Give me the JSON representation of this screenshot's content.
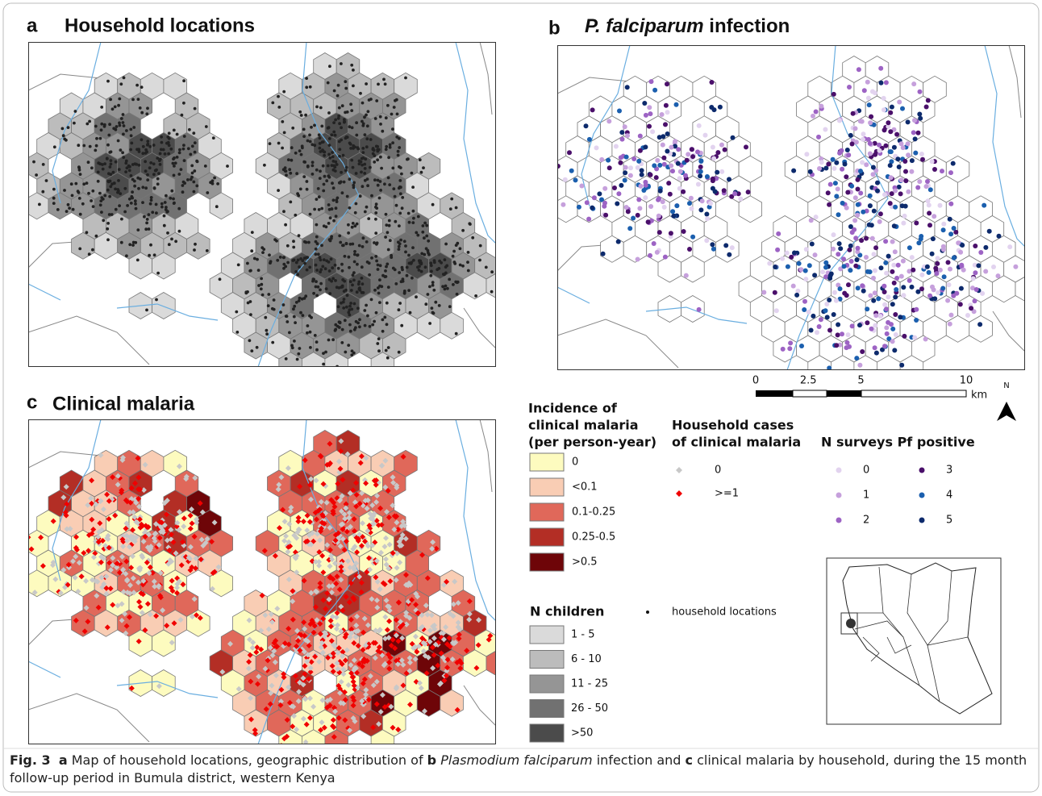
{
  "figure": {
    "panels": {
      "a": {
        "letter": "a",
        "title": "Household locations"
      },
      "b": {
        "letter": "b",
        "title_italic": "P. falciparum",
        "title": "infection"
      },
      "c": {
        "letter": "c",
        "title": "Clinical malaria"
      }
    },
    "scale_bar": {
      "ticks": [
        0,
        2.5,
        5,
        10
      ],
      "unit": "km",
      "north": "N"
    },
    "legend_incidence": {
      "title_lines": [
        "Incidence of",
        "clinical malaria",
        "(per person-year)"
      ],
      "items": [
        {
          "label": "0",
          "color": "#fdfbbf"
        },
        {
          "label": "<0.1",
          "color": "#f9cdb4"
        },
        {
          "label": "0.1-0.25",
          "color": "#e0685a"
        },
        {
          "label": "0.25-0.5",
          "color": "#b32e25"
        },
        {
          "label": ">0.5",
          "color": "#6e0508"
        }
      ]
    },
    "legend_cases": {
      "title_lines": [
        "Household cases",
        "of clinical malaria"
      ],
      "items": [
        {
          "label": "0",
          "color": "#c8c8c8"
        },
        {
          "label": ">=1",
          "color": "#f00000"
        }
      ]
    },
    "legend_pf": {
      "title": "N surveys Pf positive",
      "items": [
        {
          "label": "0",
          "color": "#e2d3ef"
        },
        {
          "label": "1",
          "color": "#c6a0dc"
        },
        {
          "label": "2",
          "color": "#9d63c4"
        },
        {
          "label": "3",
          "color": "#4a0f6a"
        },
        {
          "label": "4",
          "color": "#1b5fae"
        },
        {
          "label": "5",
          "color": "#0d2a6c"
        }
      ]
    },
    "legend_children": {
      "title": "N children",
      "items": [
        {
          "label": "1 - 5",
          "color": "#dadada"
        },
        {
          "label": "6 - 10",
          "color": "#bcbcbc"
        },
        {
          "label": "11 - 25",
          "color": "#959595"
        },
        {
          "label": "26 - 50",
          "color": "#717171"
        },
        {
          "label": ">50",
          "color": "#4b4b4b"
        }
      ]
    },
    "legend_households": {
      "label": "household locations"
    },
    "caption": {
      "fig": "Fig. 3",
      "a": "a",
      "t1": "Map of household locations, geographic distribution of",
      "b": "b",
      "t2": "Plasmodium falciparum",
      "t3": "infection and",
      "c": "c",
      "t4": "clinical malaria by household, during the 15 month follow-up period in Bumula district, western Kenya"
    }
  }
}
